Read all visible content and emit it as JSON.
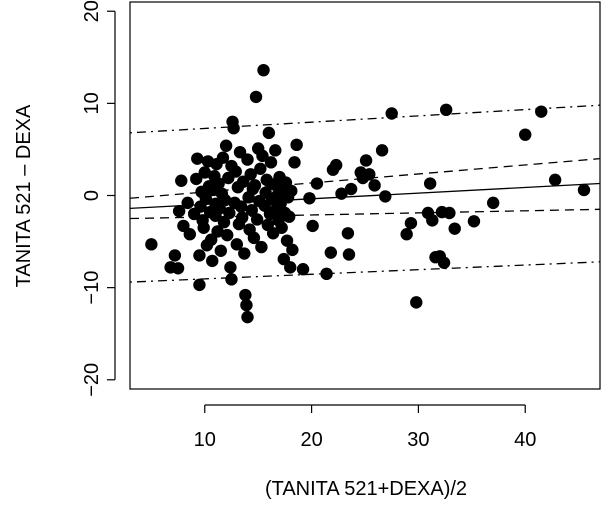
{
  "chart_data": {
    "type": "scatter",
    "xlabel": "(TANITA 521+DEXA)/2",
    "ylabel": "TANITA 521 – DEXA",
    "xlim": [
      3,
      47
    ],
    "ylim": [
      -21,
      21
    ],
    "xticks": [
      10,
      20,
      30,
      40
    ],
    "yticks": [
      -20,
      -10,
      0,
      10,
      20
    ],
    "grid": false,
    "legend": "none",
    "colors": {
      "points": "#000000",
      "lines": "#000000"
    },
    "lines": [
      {
        "style": "solid",
        "x": [
          3,
          47
        ],
        "y": [
          -1.4,
          1.3
        ]
      },
      {
        "style": "dashed",
        "x": [
          3,
          47
        ],
        "y": [
          -0.3,
          4.0
        ]
      },
      {
        "style": "dashed",
        "x": [
          3,
          47
        ],
        "y": [
          -2.5,
          -1.5
        ]
      },
      {
        "style": "dotdash",
        "x": [
          3,
          47
        ],
        "y": [
          6.8,
          9.8
        ]
      },
      {
        "style": "dotdash",
        "x": [
          3,
          47
        ],
        "y": [
          -9.4,
          -7.2
        ]
      }
    ],
    "points": [
      [
        5.0,
        -5.3
      ],
      [
        6.8,
        -7.8
      ],
      [
        7.2,
        -6.5
      ],
      [
        7.5,
        -7.9
      ],
      [
        7.8,
        1.6
      ],
      [
        7.6,
        -1.7
      ],
      [
        8.0,
        -3.3
      ],
      [
        8.4,
        -0.8
      ],
      [
        8.6,
        -4.2
      ],
      [
        9.0,
        -2.0
      ],
      [
        9.2,
        1.8
      ],
      [
        9.3,
        4.0
      ],
      [
        9.5,
        -6.5
      ],
      [
        9.5,
        -9.7
      ],
      [
        9.6,
        -1.2
      ],
      [
        9.7,
        0.4
      ],
      [
        9.8,
        -2.7
      ],
      [
        9.9,
        -3.5
      ],
      [
        10.0,
        2.5
      ],
      [
        10.1,
        -0.3
      ],
      [
        10.2,
        -5.4
      ],
      [
        10.3,
        3.7
      ],
      [
        10.4,
        1.0
      ],
      [
        10.5,
        -1.8
      ],
      [
        10.6,
        -4.8
      ],
      [
        10.7,
        -7.1
      ],
      [
        10.8,
        0.6
      ],
      [
        10.9,
        2.1
      ],
      [
        11.0,
        -2.2
      ],
      [
        11.0,
        -0.9
      ],
      [
        11.1,
        3.4
      ],
      [
        11.2,
        -3.9
      ],
      [
        11.3,
        1.3
      ],
      [
        11.4,
        -1.4
      ],
      [
        11.5,
        -6.0
      ],
      [
        11.6,
        0.2
      ],
      [
        11.7,
        4.1
      ],
      [
        11.8,
        -2.9
      ],
      [
        11.9,
        -0.5
      ],
      [
        12.0,
        5.4
      ],
      [
        12.1,
        -4.3
      ],
      [
        12.2,
        1.9
      ],
      [
        12.3,
        -1.9
      ],
      [
        12.4,
        -7.8
      ],
      [
        12.5,
        3.2
      ],
      [
        12.5,
        -9.1
      ],
      [
        12.6,
        8.0
      ],
      [
        12.7,
        7.3
      ],
      [
        12.8,
        -0.8
      ],
      [
        12.9,
        2.6
      ],
      [
        13.0,
        -5.3
      ],
      [
        13.1,
        0.9
      ],
      [
        13.2,
        -3.1
      ],
      [
        13.3,
        4.7
      ],
      [
        13.4,
        -1.2
      ],
      [
        13.5,
        -2.4
      ],
      [
        13.6,
        1.5
      ],
      [
        13.7,
        -6.3
      ],
      [
        13.8,
        -10.8
      ],
      [
        13.9,
        -11.9
      ],
      [
        14.0,
        -13.2
      ],
      [
        14.0,
        3.9
      ],
      [
        14.1,
        -0.2
      ],
      [
        14.2,
        -3.7
      ],
      [
        14.3,
        2.3
      ],
      [
        14.4,
        -1.6
      ],
      [
        14.5,
        0.7
      ],
      [
        14.6,
        -4.6
      ],
      [
        14.7,
        1.1
      ],
      [
        14.8,
        10.7
      ],
      [
        14.9,
        -2.6
      ],
      [
        15.0,
        5.1
      ],
      [
        15.1,
        -0.6
      ],
      [
        15.2,
        2.9
      ],
      [
        15.3,
        -5.6
      ],
      [
        15.4,
        4.3
      ],
      [
        15.5,
        13.6
      ],
      [
        15.6,
        -1.1
      ],
      [
        15.7,
        0.3
      ],
      [
        15.8,
        1.7
      ],
      [
        15.9,
        -3.2
      ],
      [
        16.0,
        6.8
      ],
      [
        16.1,
        -2.0
      ],
      [
        16.2,
        3.6
      ],
      [
        16.3,
        -0.4
      ],
      [
        16.4,
        -4.1
      ],
      [
        16.5,
        1.2
      ],
      [
        16.6,
        4.9
      ],
      [
        16.7,
        -1.5
      ],
      [
        16.8,
        0.0
      ],
      [
        16.9,
        -2.7
      ],
      [
        17.0,
        2.0
      ],
      [
        17.1,
        -0.9
      ],
      [
        17.2,
        -3.5
      ],
      [
        17.3,
        0.8
      ],
      [
        17.4,
        -6.9
      ],
      [
        17.5,
        -1.9
      ],
      [
        17.6,
        1.4
      ],
      [
        17.7,
        -4.9
      ],
      [
        17.8,
        -0.2
      ],
      [
        17.9,
        -2.3
      ],
      [
        18.0,
        -7.8
      ],
      [
        18.1,
        0.5
      ],
      [
        18.2,
        -5.9
      ],
      [
        18.4,
        3.6
      ],
      [
        18.6,
        5.5
      ],
      [
        19.2,
        -8.0
      ],
      [
        19.8,
        -0.3
      ],
      [
        20.1,
        -3.3
      ],
      [
        20.5,
        1.3
      ],
      [
        21.4,
        -8.5
      ],
      [
        21.8,
        -6.2
      ],
      [
        22.0,
        2.8
      ],
      [
        22.3,
        3.3
      ],
      [
        22.8,
        0.2
      ],
      [
        23.4,
        -4.1
      ],
      [
        23.5,
        -6.4
      ],
      [
        23.7,
        0.7
      ],
      [
        24.6,
        2.5
      ],
      [
        24.8,
        1.9
      ],
      [
        25.1,
        3.8
      ],
      [
        25.4,
        2.3
      ],
      [
        25.9,
        1.1
      ],
      [
        26.6,
        4.9
      ],
      [
        26.9,
        -0.1
      ],
      [
        27.5,
        8.9
      ],
      [
        28.9,
        -4.2
      ],
      [
        29.3,
        -3.0
      ],
      [
        29.8,
        -11.6
      ],
      [
        30.9,
        -1.9
      ],
      [
        31.1,
        1.3
      ],
      [
        31.3,
        -2.7
      ],
      [
        31.6,
        -6.7
      ],
      [
        32.0,
        -6.6
      ],
      [
        32.2,
        -1.8
      ],
      [
        32.4,
        -7.3
      ],
      [
        32.6,
        9.3
      ],
      [
        32.9,
        -1.9
      ],
      [
        33.4,
        -3.6
      ],
      [
        35.2,
        -2.8
      ],
      [
        37.0,
        -0.8
      ],
      [
        40.0,
        6.6
      ],
      [
        41.5,
        9.1
      ],
      [
        42.8,
        1.7
      ],
      [
        45.5,
        0.6
      ]
    ]
  }
}
